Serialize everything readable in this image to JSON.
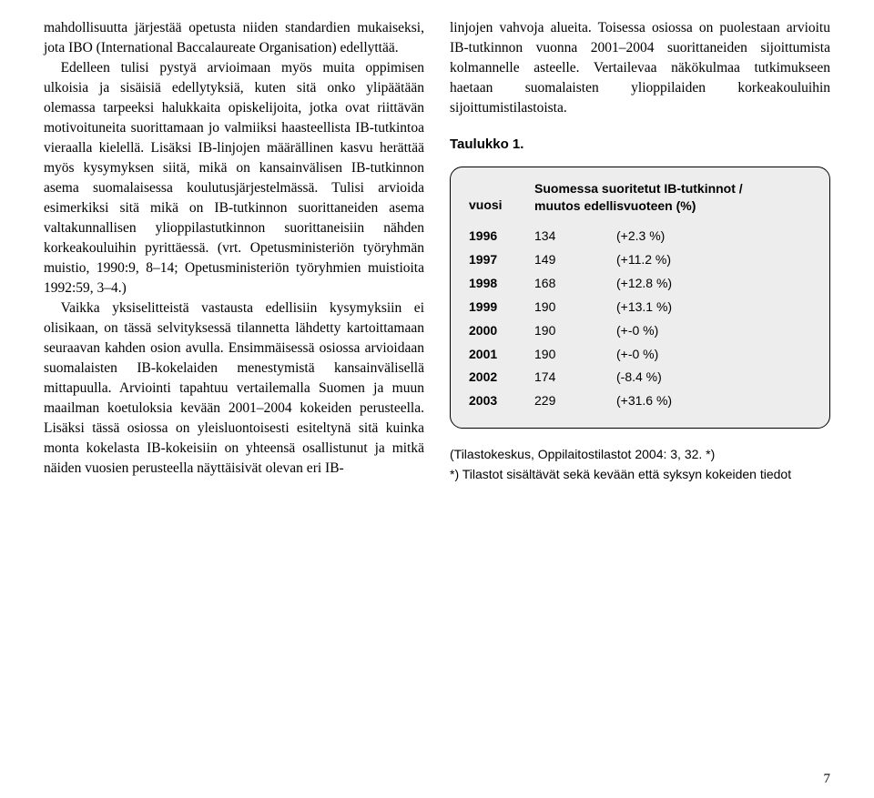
{
  "left": {
    "para1": "mahdollisuutta järjestää opetusta niiden standardien mukaiseksi, jota IBO (International Baccalaureate Organisation) edellyttää.",
    "para2": "Edelleen tulisi pystyä arvioimaan myös muita oppimisen ulkoisia ja sisäisiä edellytyksiä, kuten sitä onko ylipäätään olemassa tarpeeksi halukkaita opiskelijoita, jotka ovat riittävän motivoituneita suorittamaan jo valmiiksi haasteellista IB-tutkintoa vieraalla kielellä. Lisäksi IB-linjojen määrällinen kasvu herättää myös kysymyksen siitä, mikä on kansainvälisen IB-tutkinnon asema suomalaisessa koulutusjärjestelmässä. Tulisi arvioida esimerkiksi sitä mikä on IB-tutkinnon suorittaneiden asema valtakunnallisen ylioppilastutkinnon suorittaneisiin nähden korkeakouluihin pyrittäessä. (vrt. Opetusministeriön työryhmän muistio, 1990:9, 8–14; Opetusministeriön työryhmien muistioita 1992:59, 3–4.)",
    "para3": "Vaikka yksiselitteistä vastausta edellisiin kysymyksiin ei olisikaan, on tässä selvityksessä tilannetta lähdetty kartoittamaan seuraavan kahden osion avulla. Ensimmäisessä osiossa arvioidaan suomalaisten IB-kokelaiden menestymistä kansainvälisellä mittapuulla. Arviointi tapahtuu vertailemalla Suomen ja muun maailman koetuloksia kevään 2001–2004 kokeiden perusteella. Lisäksi tässä osiossa on yleisluontoisesti esiteltynä sitä kuinka monta kokelasta IB-kokeisiin on yhteensä osallistunut ja mitkä näiden vuosien perusteella näyttäisivät olevan eri IB-"
  },
  "right": {
    "intro": "linjojen vahvoja alueita. Toisessa osiossa on puolestaan arvioitu IB-tutkinnon vuonna 2001–2004 suorittaneiden sijoittumista kolmannelle asteelle. Vertailevaa näkökulmaa tutkimukseen haetaan suomalaisten ylioppilaiden korkeakouluihin sijoittumistilastoista.",
    "table_caption": "Taulukko 1.",
    "table": {
      "header_left": "vuosi",
      "header_right_l1": "Suomessa suoritetut IB-tutkinnot /",
      "header_right_l2": "muutos edellisvuoteen (%)",
      "rows": [
        {
          "year": "1996",
          "value": "134",
          "change": "(+2.3 %)"
        },
        {
          "year": "1997",
          "value": "149",
          "change": "(+11.2 %)"
        },
        {
          "year": "1998",
          "value": "168",
          "change": "(+12.8 %)"
        },
        {
          "year": "1999",
          "value": "190",
          "change": "(+13.1 %)"
        },
        {
          "year": "2000",
          "value": "190",
          "change": "(+-0  %)"
        },
        {
          "year": "2001",
          "value": "190",
          "change": "(+-0  %)"
        },
        {
          "year": "2002",
          "value": "174",
          "change": "(-8.4 %)"
        },
        {
          "year": "2003",
          "value": "229",
          "change": "(+31.6 %)"
        }
      ]
    },
    "footnote1": "(Tilastokeskus, Oppilaitostilastot 2004: 3, 32. *)",
    "footnote2": "*) Tilastot sisältävät sekä kevään että syksyn kokeiden tiedot"
  },
  "pagenum": "7"
}
